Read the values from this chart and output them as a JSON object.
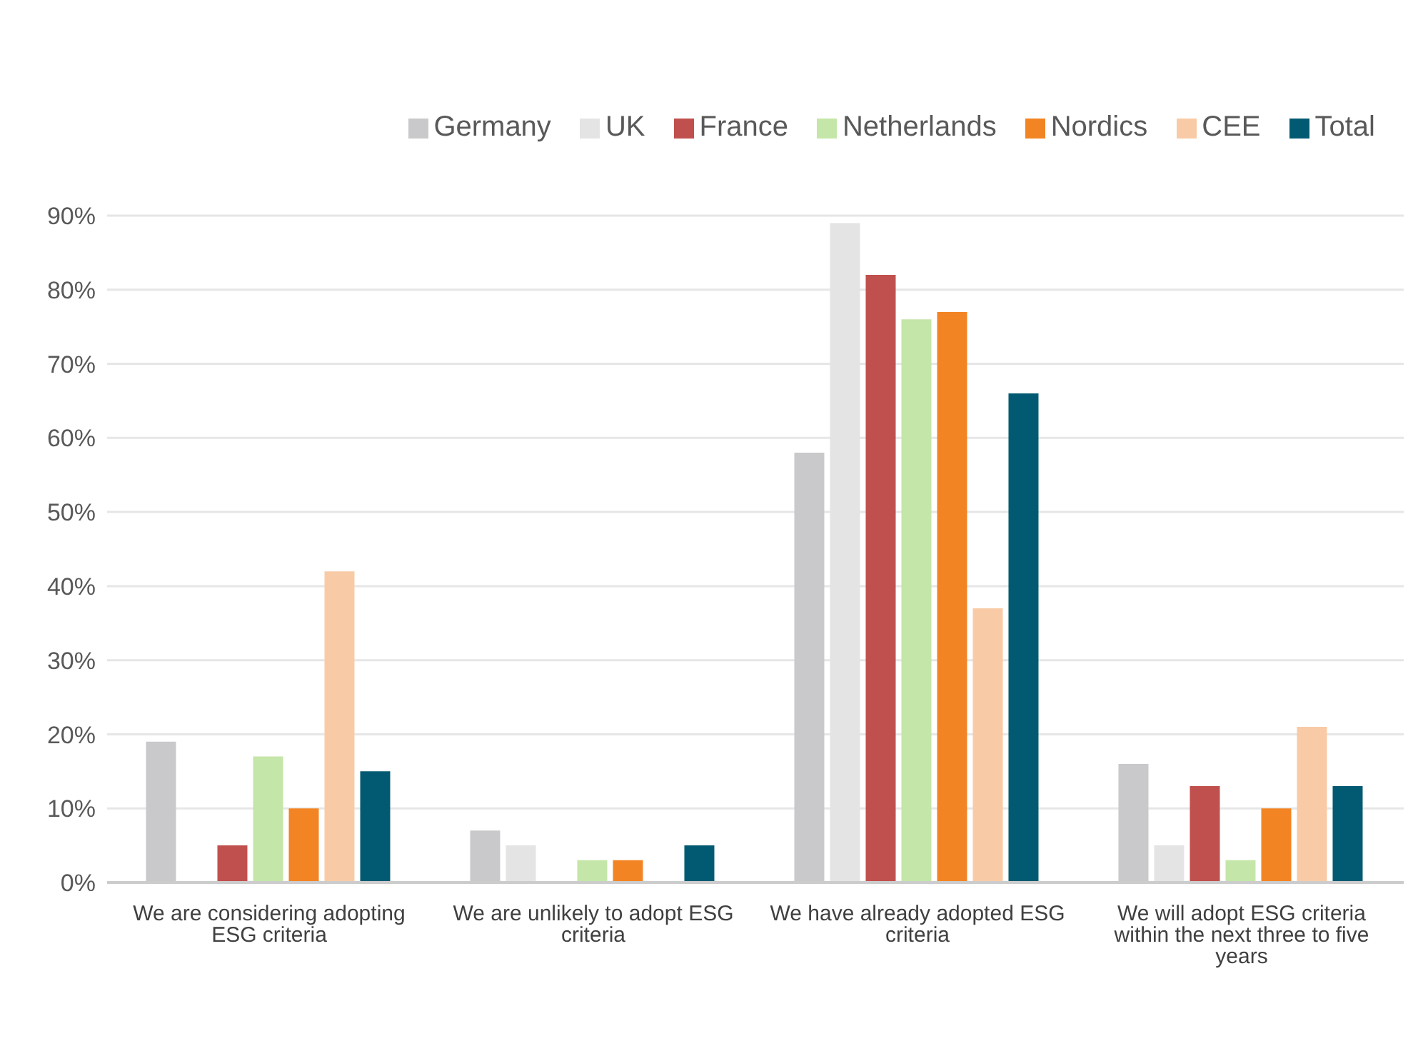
{
  "chart_data": {
    "type": "bar",
    "categories": [
      "We are considering adopting ESG criteria",
      "We are unlikely to adopt ESG criteria",
      "We have already adopted ESG criteria",
      "We will adopt ESG criteria within the next three to five years"
    ],
    "series": [
      {
        "name": "Germany",
        "color": "#c9c9cb",
        "values": [
          19,
          7,
          58,
          16
        ]
      },
      {
        "name": "UK",
        "color": "#e4e4e4",
        "values": [
          0,
          5,
          89,
          5
        ]
      },
      {
        "name": "France",
        "color": "#c0504d",
        "values": [
          5,
          0,
          82,
          13
        ]
      },
      {
        "name": "Netherlands",
        "color": "#c4e6a8",
        "values": [
          17,
          3,
          76,
          3
        ]
      },
      {
        "name": "Nordics",
        "color": "#f38423",
        "values": [
          10,
          3,
          77,
          10
        ]
      },
      {
        "name": "CEE",
        "color": "#f8cba6",
        "values": [
          42,
          0,
          37,
          21
        ]
      },
      {
        "name": "Total",
        "color": "#025a72",
        "values": [
          15,
          5,
          66,
          13
        ]
      }
    ],
    "ylim": [
      0,
      90
    ],
    "yticks": [
      {
        "value": 0,
        "label": "0%"
      },
      {
        "value": 10,
        "label": "10%"
      },
      {
        "value": 20,
        "label": "20%"
      },
      {
        "value": 30,
        "label": "30%"
      },
      {
        "value": 40,
        "label": "40%"
      },
      {
        "value": 50,
        "label": "50%"
      },
      {
        "value": 60,
        "label": "60%"
      },
      {
        "value": 70,
        "label": "70%"
      },
      {
        "value": 80,
        "label": "80%"
      },
      {
        "value": 90,
        "label": "90%"
      }
    ],
    "grid": "y",
    "legend": "top right"
  }
}
